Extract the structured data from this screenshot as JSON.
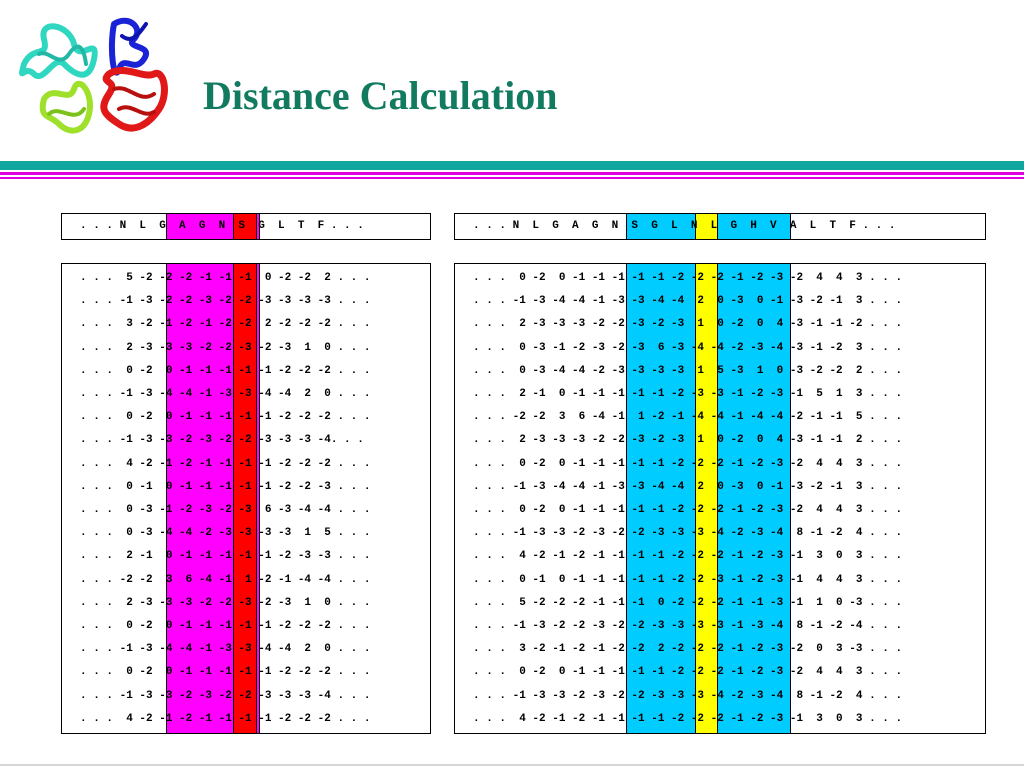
{
  "title": "Distance Calculation",
  "colors": {
    "title": "#117a5f",
    "rule_teal": "#12a6a0",
    "rule_magenta": "#e000e0",
    "highlight_magenta": "#ff00ff",
    "highlight_red": "#ff0000",
    "highlight_cyan": "#00ccff",
    "highlight_yellow": "#ffff00"
  },
  "logo_icon": "protein-structure-ribbon-icon",
  "left_panel": {
    "header": ". . . N  L  G  A  G  N  S  G  L  T  F . . .",
    "rows": [
      ". . .  5 -2 -2 -2 -1 -1 -1  0 -2 -2  2 . . .",
      ". . . -1 -3 -2 -2 -3 -2 -2 -3 -3 -3 -3 . . .",
      ". . .  3 -2 -1 -2 -1 -2 -2  2 -2 -2 -2 . . .",
      ". . .  2 -3 -3 -3 -2 -2 -3 -2 -3  1  0 . . .",
      ". . .  0 -2  0 -1 -1 -1 -1 -1 -2 -2 -2 . . .",
      ". . . -1 -3 -4 -4 -1 -3 -3 -4 -4  2  0 . . .",
      ". . .  0 -2  0 -1 -1 -1 -1 -1 -2 -2 -2 . . .",
      ". . . -1 -3 -3 -2 -3 -2 -2 -3 -3 -3 -4. . .",
      ". . .  4 -2 -1 -2 -1 -1 -1 -1 -2 -2 -2 . . .",
      ". . .  0 -1  0 -1 -1 -1 -1 -1 -2 -2 -3 . . .",
      ". . .  0 -3 -1 -2 -3 -2 -3  6 -3 -4 -4 . . .",
      ". . .  0 -3 -4 -4 -2 -3 -3 -3 -3  1  5 . . .",
      ". . .  2 -1  0 -1 -1 -1 -1 -1 -2 -3 -3 . . .",
      ". . . -2 -2  3  6 -4 -1  1 -2 -1 -4 -4 . . .",
      ". . .  2 -3 -3 -3 -2 -2 -3 -2 -3  1  0 . . .",
      ". . .  0 -2  0 -1 -1 -1 -1 -1 -2 -2 -2 . . .",
      ". . . -1 -3 -4 -4 -1 -3 -3 -4 -4  2  0 . . .",
      ". . .  0 -2  0 -1 -1 -1 -1 -1 -2 -2 -2 . . .",
      ". . . -1 -3 -3 -2 -3 -2 -2 -3 -3 -3 -4 . . .",
      ". . .  4 -2 -1 -2 -1 -1 -1 -1 -2 -2 -2 . . ."
    ]
  },
  "right_panel": {
    "header": ". . . N  L  G  A  G  N  S  G  L  N  L  G  H  V  A  L  T  F . . .",
    "rows": [
      ". . .  0 -2  0 -1 -1 -1 -1 -1 -2 -2 -2 -1 -2 -3 -2  4  4  3 . . .",
      ". . . -1 -3 -4 -4 -1 -3 -3 -4 -4  2  0 -3  0 -1 -3 -2 -1  3 . . .",
      ". . .  2 -3 -3 -3 -2 -2 -3 -2 -3  1  0 -2  0  4 -3 -1 -1 -2 . . .",
      ". . .  0 -3 -1 -2 -3 -2 -3  6 -3 -4 -4 -2 -3 -4 -3 -1 -2  3 . . .",
      ". . .  0 -3 -4 -4 -2 -3 -3 -3 -3  1  5 -3  1  0 -3 -2 -2  2 . . .",
      ". . .  2 -1  0 -1 -1 -1 -1 -1 -2 -3 -3 -1 -2 -3 -1  5  1  3 . . .",
      ". . . -2 -2  3  6 -4 -1  1 -2 -1 -4 -4 -1 -4 -4 -2 -1 -1  5 . . .",
      ". . .  2 -3 -3 -3 -2 -2 -3 -2 -3  1  0 -2  0  4 -3 -1 -1  2 . . .",
      ". . .  0 -2  0 -1 -1 -1 -1 -1 -2 -2 -2 -1 -2 -3 -2  4  4  3 . . .",
      ". . . -1 -3 -4 -4 -1 -3 -3 -4 -4  2  0 -3  0 -1 -3 -2 -1  3 . . .",
      ". . .  0 -2  0 -1 -1 -1 -1 -1 -2 -2 -2 -1 -2 -3 -2  4  4  3 . . .",
      ". . . -1 -3 -3 -2 -3 -2 -2 -3 -3 -3 -4 -2 -3 -4  8 -1 -2  4 . . .",
      ". . .  4 -2 -1 -2 -1 -1 -1 -1 -2 -2 -2 -1 -2 -3 -1  3  0  3 . . .",
      ". . .  0 -1  0 -1 -1 -1 -1 -1 -2 -2 -3 -1 -2 -3 -1  4  4  3 . . .",
      ". . .  5 -2 -2 -2 -1 -1 -1  0 -2 -2 -2 -1 -1 -3 -1  1  0 -3 . . .",
      ". . . -1 -3 -2 -2 -3 -2 -2 -3 -3 -3 -3 -1 -3 -4  8 -1 -2 -4 . . .",
      ". . .  3 -2 -1 -2 -1 -2 -2  2 -2 -2 -2 -1 -2 -3 -2  0  3 -3 . . .",
      ". . .  0 -2  0 -1 -1 -1 -1 -1 -2 -2 -2 -1 -2 -3 -2  4  4  3 . . .",
      ". . . -1 -3 -3 -2 -3 -2 -2 -3 -3 -3 -4 -2 -3 -4  8 -1 -2  4 . . .",
      ". . .  4 -2 -1 -2 -1 -1 -1 -1 -2 -2 -2 -1 -2 -3 -1  3  0  3 . . ."
    ]
  }
}
